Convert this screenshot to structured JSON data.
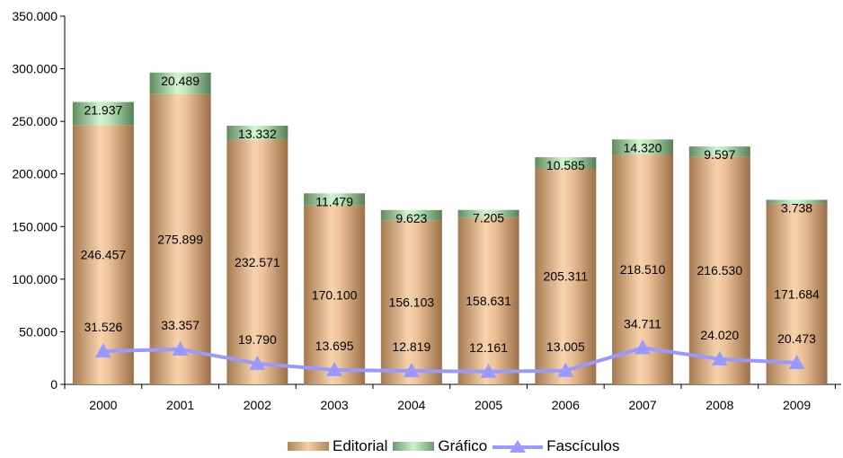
{
  "chart_data": {
    "type": "bar",
    "stacked": true,
    "title": "",
    "xlabel": "",
    "ylabel": "",
    "categories": [
      "2000",
      "2001",
      "2002",
      "2003",
      "2004",
      "2005",
      "2006",
      "2007",
      "2008",
      "2009"
    ],
    "ylim": [
      0,
      350000
    ],
    "yticks": [
      0,
      50000,
      100000,
      150000,
      200000,
      250000,
      300000,
      350000
    ],
    "ytick_labels": [
      "0",
      "50.000",
      "100.000",
      "150.000",
      "200.000",
      "250.000",
      "300.000",
      "350.000"
    ],
    "series": [
      {
        "name": "Editorial",
        "kind": "bar",
        "color": "#e3b68a",
        "values": [
          246457,
          275899,
          232571,
          170100,
          156103,
          158631,
          205311,
          218510,
          216530,
          171684
        ],
        "labels": [
          "246.457",
          "275.899",
          "232.571",
          "170.100",
          "156.103",
          "158.631",
          "205.311",
          "218.510",
          "216.530",
          "171.684"
        ]
      },
      {
        "name": "Gráfico",
        "kind": "bar",
        "color": "#9fcf9f",
        "values": [
          21937,
          20489,
          13332,
          11479,
          9623,
          7205,
          10585,
          14320,
          9597,
          3738
        ],
        "labels": [
          "21.937",
          "20.489",
          "13.332",
          "11.479",
          "9.623",
          "7.205",
          "10.585",
          "14.320",
          "9.597",
          "3.738"
        ]
      },
      {
        "name": "Fascículos",
        "kind": "line",
        "color": "#9999ff",
        "marker": "triangle",
        "values": [
          31526,
          33357,
          19790,
          13695,
          12819,
          12161,
          13005,
          34711,
          24020,
          20473
        ],
        "labels": [
          "31.526",
          "33.357",
          "19.790",
          "13.695",
          "12.819",
          "12.161",
          "13.005",
          "34.711",
          "24.020",
          "20.473"
        ]
      }
    ],
    "grid": false,
    "legend_position": "bottom"
  }
}
